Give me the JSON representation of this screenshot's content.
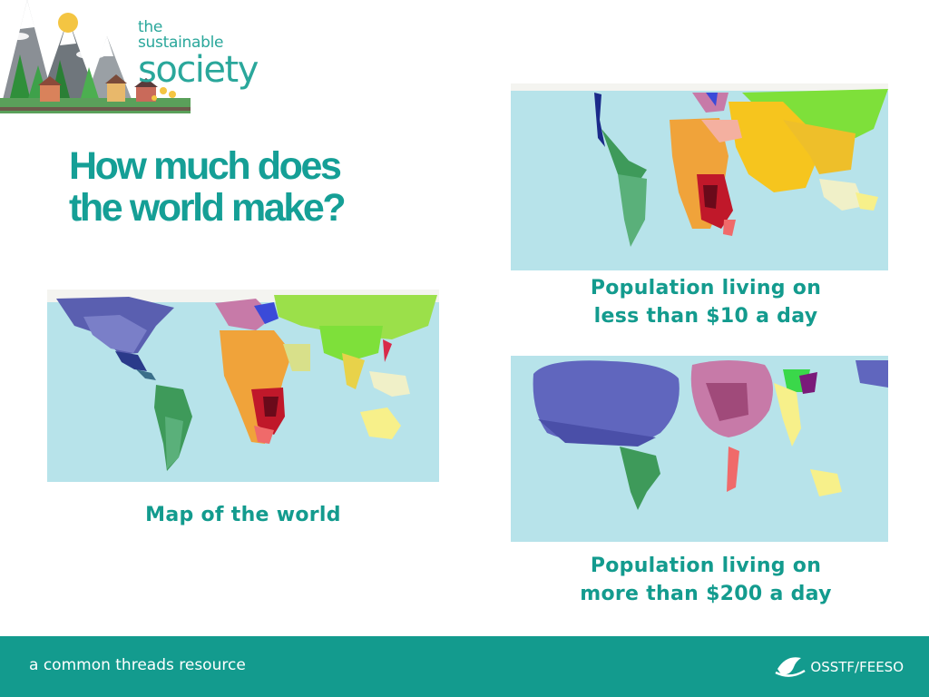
{
  "branding": {
    "logo_line1": "the",
    "logo_line2": "sustainable",
    "logo_line3": "society"
  },
  "slide": {
    "title_line1": "How much does",
    "title_line2": "the world make?"
  },
  "maps": {
    "world_caption": "Map of the world",
    "poor_caption_line1": "Population living on",
    "poor_caption_line2": "less than $10 a day",
    "rich_caption_line1": "Population living on",
    "rich_caption_line2": "more than $200 a day"
  },
  "footer": {
    "resource_text": "a common threads resource",
    "org_name": "OSSTF/FEESO"
  },
  "colors": {
    "accent": "#139b8e",
    "ocean": "#b7e3ea"
  }
}
